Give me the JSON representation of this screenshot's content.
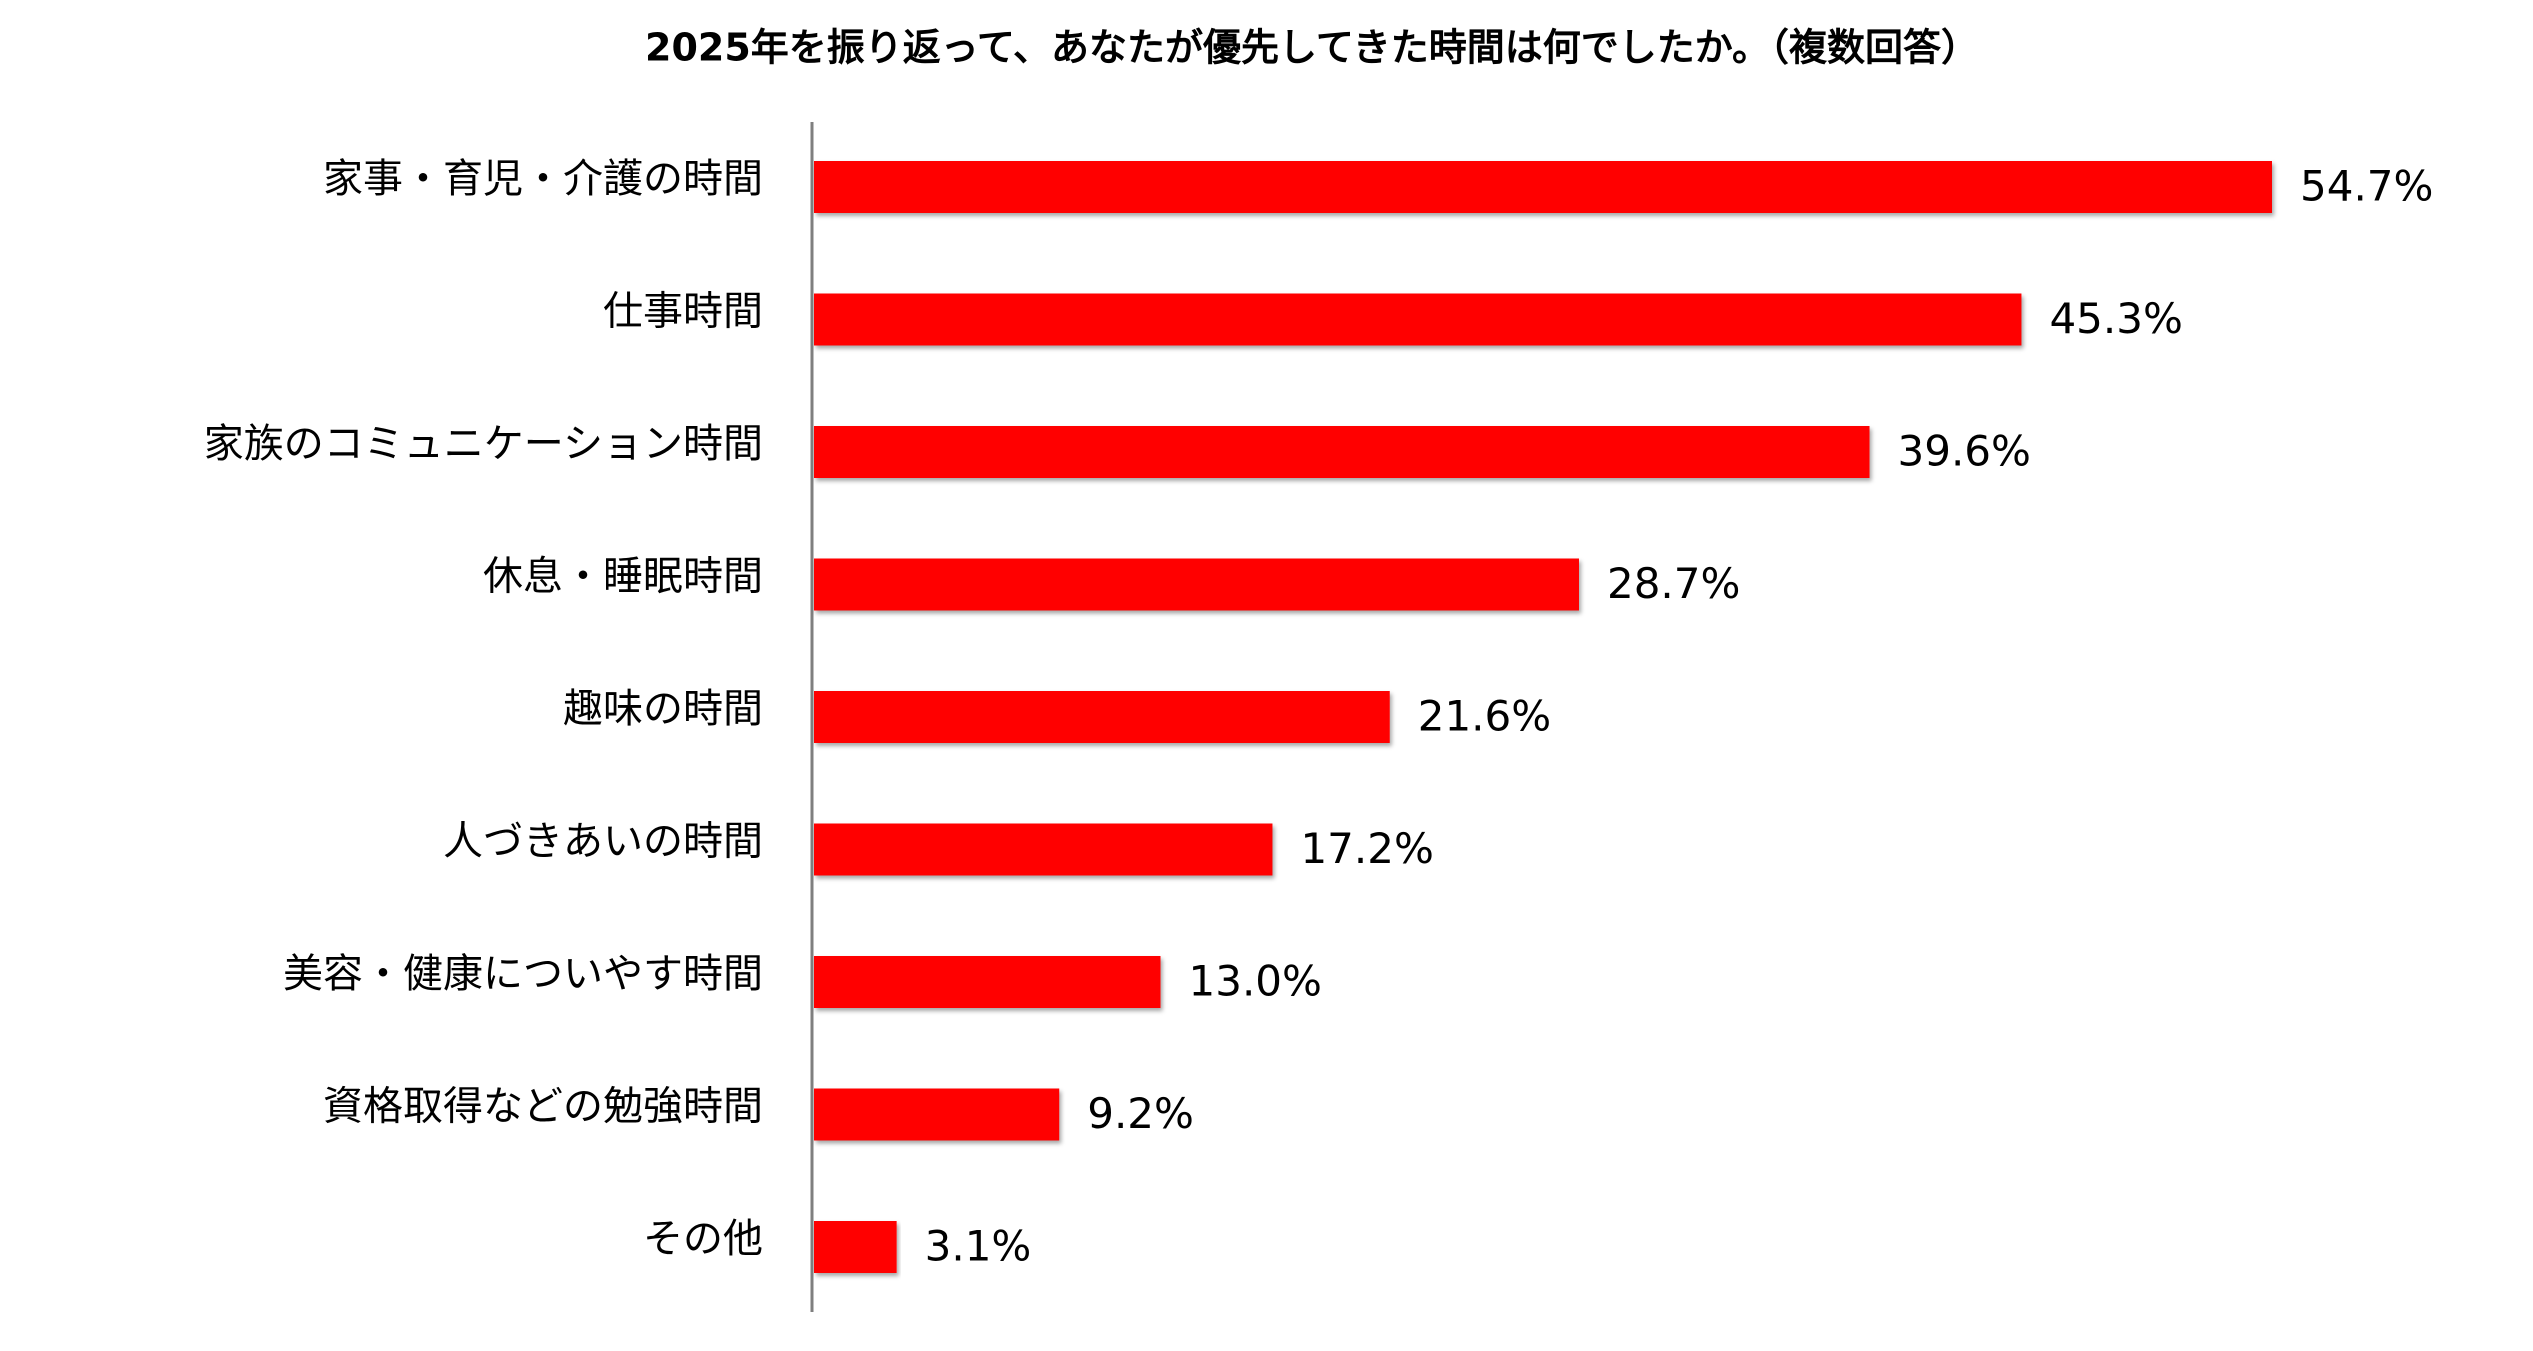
{
  "chart_data": {
    "type": "bar",
    "orientation": "horizontal",
    "title": "2025年を振り返って、あなたが優先してきた時間は何でしたか。（複数回答）",
    "categories": [
      "家事・育児・介護の時間",
      "仕事時間",
      "家族のコミュニケーション時間",
      "休息・睡眠時間",
      "趣味の時間",
      "人づきあいの時間",
      "美容・健康についやす時間",
      "資格取得などの勉強時間",
      "その他"
    ],
    "values": [
      54.7,
      45.3,
      39.6,
      28.7,
      21.6,
      17.2,
      13.0,
      9.2,
      3.1
    ],
    "value_labels": [
      "54.7%",
      "45.3%",
      "39.6%",
      "28.7%",
      "21.6%",
      "17.2%",
      "13.0%",
      "9.2%",
      "3.1%"
    ],
    "color": "#ff0000"
  }
}
